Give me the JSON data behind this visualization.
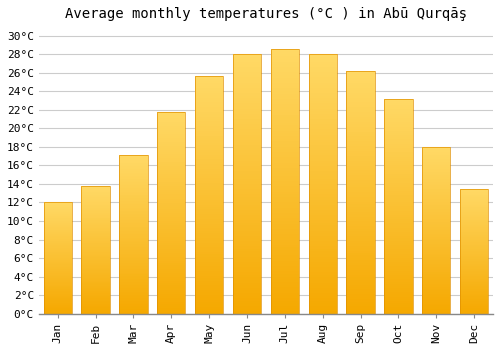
{
  "title": "Average monthly temperatures (°C ) in Abū Qurqāş",
  "months": [
    "Jan",
    "Feb",
    "Mar",
    "Apr",
    "May",
    "Jun",
    "Jul",
    "Aug",
    "Sep",
    "Oct",
    "Nov",
    "Dec"
  ],
  "values": [
    12.1,
    13.8,
    17.1,
    21.8,
    25.6,
    28.0,
    28.6,
    28.0,
    26.2,
    23.2,
    18.0,
    13.5
  ],
  "bar_color_bottom": "#F5A800",
  "bar_color_top": "#FFD966",
  "bar_edge_color": "#E09000",
  "background_color": "#FFFFFF",
  "plot_bg_color": "#FFFFFF",
  "grid_color": "#CCCCCC",
  "ylim": [
    0,
    31
  ],
  "title_fontsize": 10,
  "tick_fontsize": 8,
  "font_family": "monospace"
}
